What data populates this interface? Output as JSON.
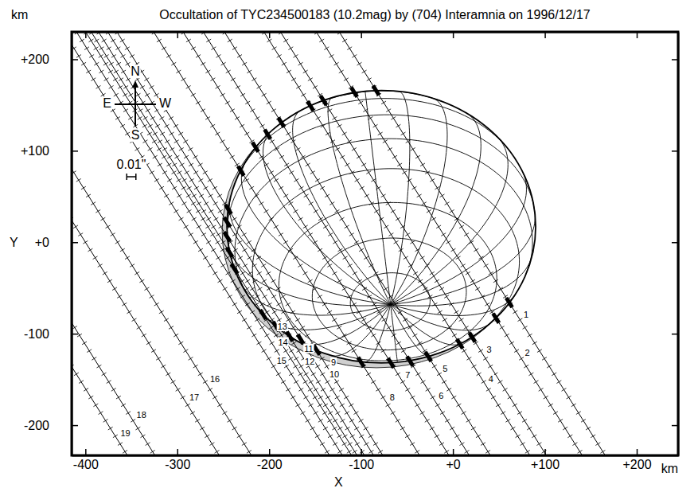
{
  "chart_data": {
    "type": "occultation",
    "title": "Occultation of TYC234500183 (10.2mag) by (704) Interamnia on 1996/12/17",
    "x_label": "X",
    "y_label": "Y",
    "x_unit": "km",
    "y_unit": "km",
    "xlim": [
      -415,
      245
    ],
    "ylim": [
      -233,
      230
    ],
    "xticks": [
      -400,
      -300,
      -200,
      -100,
      {
        "value": 0,
        "label": "+0"
      },
      {
        "value": 100,
        "label": "+100"
      },
      {
        "value": 200,
        "label": "+200"
      }
    ],
    "yticks": [
      -200,
      -100,
      {
        "value": 0,
        "label": "+0"
      },
      {
        "value": 100,
        "label": "+100"
      },
      {
        "value": 200,
        "label": "+200"
      }
    ],
    "asteroid": {
      "cx": -78,
      "cy": 17,
      "a": 168,
      "b": 149,
      "aspect_deg": 55,
      "roll_deg": 6
    },
    "track_slope": -1.6,
    "chords": [
      {
        "label": "1",
        "x0": 20,
        "events": [
          166,
          -66
        ]
      },
      {
        "label": "2",
        "x0": -5,
        "events": [
          164,
          -83
        ]
      },
      {
        "label": "3",
        "x0": -44,
        "events": [
          155,
          -104
        ]
      },
      {
        "label": "4",
        "x0": -62,
        "events": [
          149,
          -111
        ]
      },
      {
        "label": "5",
        "x0": -105,
        "events": [
          131,
          -125
        ]
      },
      {
        "label": "6",
        "x0": -128,
        "events": [
          118,
          -130
        ]
      },
      {
        "label": "7",
        "x0": -150,
        "events": [
          104,
          -132
        ]
      },
      {
        "label": "8",
        "x0": -182,
        "events": [
          78,
          -131
        ]
      },
      {
        "label": "9",
        "x0": -222,
        "events": [
          36,
          -118
        ]
      },
      {
        "label": "10",
        "x0": -232,
        "events": [
          22,
          -106
        ]
      },
      {
        "label": "11",
        "x0": -242,
        "events": [
          6,
          -103
        ]
      },
      {
        "label": "12",
        "x0": -250,
        "events": [
          -11,
          -92
        ]
      },
      {
        "label": "13",
        "x0": -256,
        "events": [
          -29,
          -79
        ]
      },
      {
        "label": "14",
        "x0": -266,
        "events": []
      },
      {
        "label": "15",
        "x0": -280,
        "events": []
      },
      {
        "label": "16",
        "x0": -365,
        "events": []
      },
      {
        "label": "17",
        "x0": -400,
        "events": []
      },
      {
        "label": "18",
        "x0": -470,
        "events": []
      },
      {
        "label": "19",
        "x0": -500,
        "events": []
      }
    ],
    "compass": {
      "north": "N",
      "south": "S",
      "east": "E",
      "west": "W"
    },
    "scale_bar": {
      "label": "0.01\"",
      "length_km": 10
    }
  }
}
